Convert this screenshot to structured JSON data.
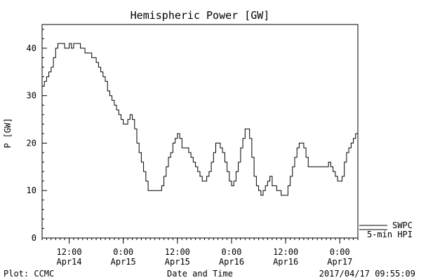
{
  "chart_data": {
    "type": "line",
    "title": "Hemispheric Power [GW]",
    "ylabel": "P [GW]",
    "xlabel": "Date and Time",
    "ylim": [
      0,
      45
    ],
    "y_ticks": [
      0,
      10,
      20,
      30,
      40
    ],
    "x_unit": "hours since 2017-04-14 00:00",
    "x_range": [
      6,
      76
    ],
    "x_ticks": [
      {
        "x": 12,
        "time": "12:00",
        "date": "Apr14"
      },
      {
        "x": 24,
        "time": "0:00",
        "date": "Apr15"
      },
      {
        "x": 36,
        "time": "12:00",
        "date": "Apr15"
      },
      {
        "x": 48,
        "time": "0:00",
        "date": "Apr16"
      },
      {
        "x": 60,
        "time": "12:00",
        "date": "Apr16"
      },
      {
        "x": 72,
        "time": "0:00",
        "date": "Apr17"
      }
    ],
    "series": [
      {
        "name": "5-min HPI",
        "x": [
          6.0,
          6.5,
          7.0,
          7.5,
          8.0,
          8.5,
          9.0,
          9.5,
          10.0,
          10.5,
          11.0,
          11.5,
          12.0,
          12.5,
          13.0,
          13.5,
          14.0,
          14.5,
          15.0,
          15.5,
          16.0,
          16.5,
          17.0,
          17.5,
          18.0,
          18.5,
          19.0,
          19.5,
          20.0,
          20.5,
          21.0,
          21.5,
          22.0,
          22.5,
          23.0,
          23.5,
          24.0,
          24.5,
          25.0,
          25.5,
          26.0,
          26.5,
          27.0,
          27.5,
          28.0,
          28.5,
          29.0,
          29.5,
          30.0,
          30.5,
          31.0,
          31.5,
          32.0,
          32.5,
          33.0,
          33.5,
          34.0,
          34.5,
          35.0,
          35.5,
          36.0,
          36.5,
          37.0,
          37.5,
          38.0,
          38.5,
          39.0,
          39.5,
          40.0,
          40.5,
          41.0,
          41.5,
          42.0,
          42.5,
          43.0,
          43.5,
          44.0,
          44.5,
          45.0,
          45.5,
          46.0,
          46.5,
          47.0,
          47.5,
          48.0,
          48.5,
          49.0,
          49.5,
          50.0,
          50.5,
          51.0,
          51.5,
          52.0,
          52.5,
          53.0,
          53.5,
          54.0,
          54.5,
          55.0,
          55.5,
          56.0,
          56.5,
          57.0,
          57.5,
          58.0,
          58.5,
          59.0,
          59.5,
          60.0,
          60.5,
          61.0,
          61.5,
          62.0,
          62.5,
          63.0,
          63.5,
          64.0,
          64.5,
          65.0,
          65.5,
          66.0,
          66.5,
          67.0,
          67.5,
          68.0,
          68.5,
          69.0,
          69.5,
          70.0,
          70.5,
          71.0,
          71.5,
          72.0,
          72.5,
          73.0,
          73.5,
          74.0,
          74.5,
          75.0,
          75.5,
          76.0
        ],
        "y": [
          32,
          33,
          34,
          35,
          36,
          38,
          40,
          41,
          41,
          41,
          40,
          40,
          41,
          40,
          41,
          41,
          41,
          40,
          40,
          39,
          39,
          39,
          38,
          38,
          37,
          36,
          35,
          34,
          33,
          31,
          30,
          29,
          28,
          27,
          26,
          25,
          24,
          24,
          25,
          26,
          25,
          23,
          20,
          18,
          16,
          14,
          12,
          10,
          10,
          10,
          10,
          10,
          10,
          11,
          13,
          15,
          17,
          18,
          20,
          21,
          22,
          21,
          19,
          19,
          19,
          18,
          17,
          16,
          15,
          14,
          13,
          12,
          12,
          13,
          14,
          16,
          18,
          20,
          20,
          19,
          18,
          16,
          14,
          12,
          11,
          12,
          14,
          16,
          19,
          21,
          23,
          23,
          21,
          17,
          13,
          11,
          10,
          9,
          10,
          11,
          12,
          13,
          11,
          11,
          10,
          10,
          9,
          9,
          9,
          11,
          13,
          15,
          17,
          19,
          20,
          20,
          19,
          17,
          15,
          15,
          15,
          15,
          15,
          15,
          15,
          15,
          15,
          16,
          15,
          14,
          13,
          12,
          12,
          13,
          16,
          18,
          19,
          20,
          21,
          22,
          23
        ]
      }
    ],
    "legend": [
      "SWPC",
      "5-min HPI"
    ],
    "footer_left": "Plot: CCMC",
    "footer_right": "2017/04/17 09:55:09"
  }
}
